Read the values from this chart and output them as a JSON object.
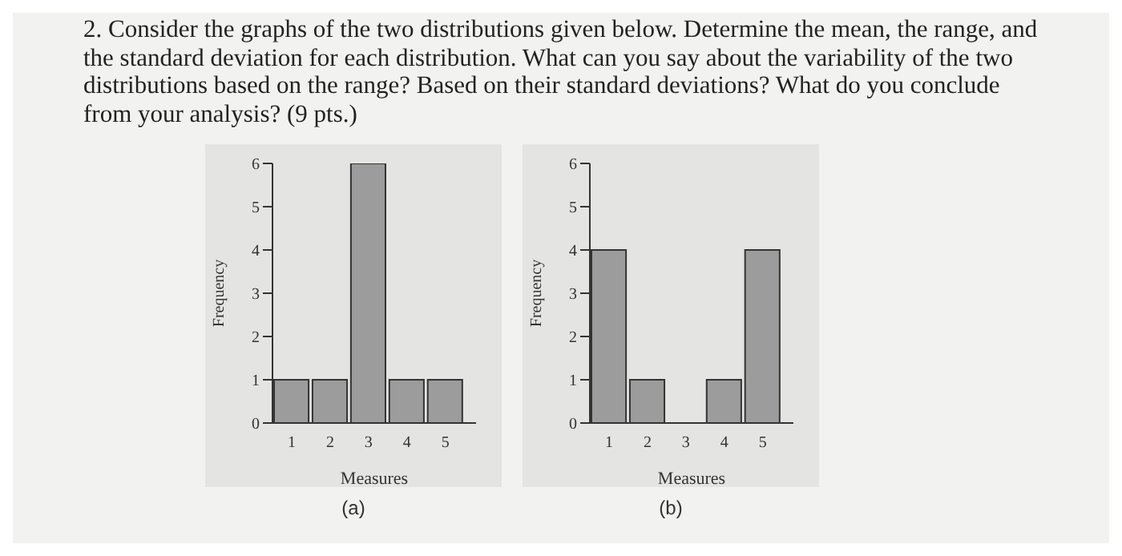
{
  "chart_data": [
    {
      "type": "histogram",
      "title": "2. Consider the graphs of the two distributions given below. Determine the mean, the range, and the standard deviation for each distribution. What can you say about the variability of the two distributions based on the range? Based on their standard deviations? What do you conclude from your analysis? (9 pts.)",
      "xlabel": "Measures",
      "ylabel": "Frequency",
      "bins": [
        0.5,
        1.5,
        2.5,
        3.5,
        4.5,
        5.5
      ],
      "values": [
        1,
        1,
        6,
        1,
        1
      ],
      "color": "#9c9c9c",
      "xlim": [
        0.5,
        5.8
      ],
      "xticks": [
        1,
        2,
        3,
        4,
        5
      ],
      "ylim": [
        0,
        6
      ],
      "yticks": [
        0,
        1,
        2,
        3,
        4,
        5,
        6
      ],
      "grid": false,
      "annotations": [
        "(a)"
      ]
    },
    {
      "type": "histogram",
      "xlabel": "Measures",
      "ylabel": "Frequency",
      "bins": [
        0.5,
        1.5,
        2.5,
        3.5,
        4.5,
        5.5
      ],
      "values": [
        4,
        1,
        0,
        1,
        4
      ],
      "color": "#9c9c9c",
      "xlim": [
        0.5,
        5.8
      ],
      "xticks": [
        1,
        2,
        3,
        4,
        5
      ],
      "ylim": [
        0,
        6
      ],
      "yticks": [
        0,
        1,
        2,
        3,
        4,
        5,
        6
      ],
      "grid": false,
      "annotations": [
        "(b)"
      ]
    }
  ]
}
